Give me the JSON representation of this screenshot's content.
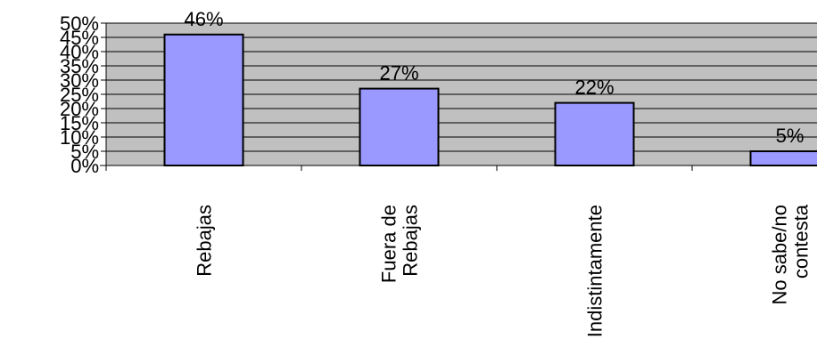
{
  "chart_data": {
    "type": "bar",
    "categories": [
      "Rebajas",
      "Fuera de Rebajas",
      "Indistintamente",
      "No sabe/no contesta"
    ],
    "category_label_lines": [
      [
        "Rebajas"
      ],
      [
        "Fuera de",
        "Rebajas"
      ],
      [
        "Indistintamente"
      ],
      [
        "No sabe/no",
        "contesta"
      ]
    ],
    "values": [
      46,
      27,
      22,
      5
    ],
    "data_labels": [
      "46%",
      "27%",
      "22%",
      "5%"
    ],
    "y_ticks": [
      "0%",
      "5%",
      "10%",
      "15%",
      "20%",
      "25%",
      "30%",
      "35%",
      "40%",
      "45%",
      "50%"
    ],
    "ylim": [
      0,
      50
    ],
    "grid": true,
    "title": "",
    "xlabel": "",
    "ylabel": "",
    "colors": {
      "bar_fill": "#9999ff",
      "bar_stroke": "#000000",
      "plot_background": "#c0c0c0",
      "gridline": "#000000",
      "text": "#000000"
    }
  }
}
